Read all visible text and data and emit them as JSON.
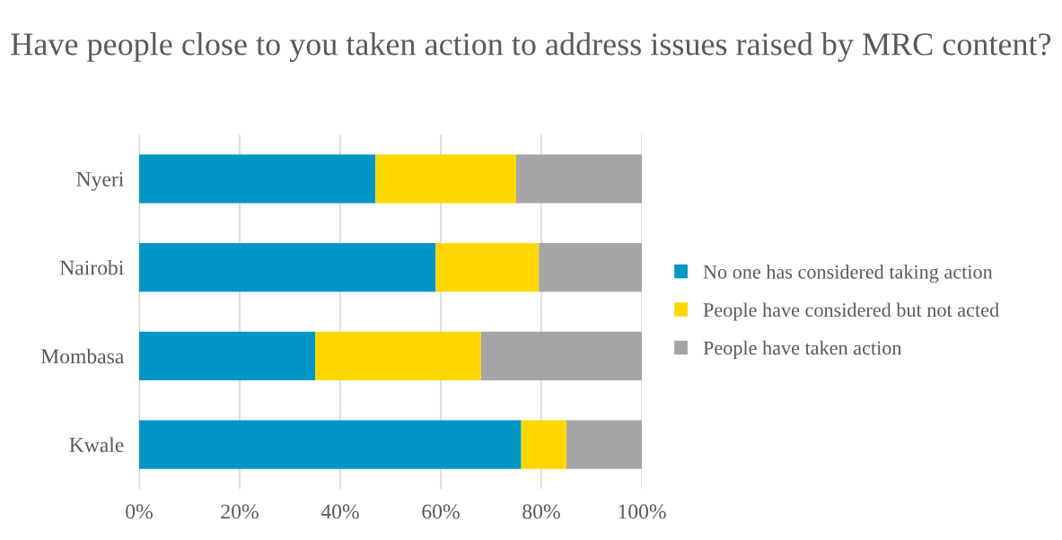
{
  "chart_data": {
    "type": "bar",
    "orientation": "horizontal",
    "stacked": true,
    "title": "Have people close to you taken action to address issues raised by MRC content?",
    "categories": [
      "Nyeri",
      "Nairobi",
      "Mombasa",
      "Kwale"
    ],
    "series": [
      {
        "name": "No one has considered taking action",
        "color": "#0096c6",
        "values": [
          47,
          59,
          35,
          76
        ]
      },
      {
        "name": "People have considered but not acted",
        "color": "#ffd700",
        "values": [
          28,
          20.5,
          33,
          9
        ]
      },
      {
        "name": "People have taken action",
        "color": "#a5a5a5",
        "values": [
          25,
          20.5,
          32,
          15
        ]
      }
    ],
    "xlim": [
      0,
      100
    ],
    "xticks": [
      {
        "value": 0,
        "label": "0%"
      },
      {
        "value": 20,
        "label": "20%"
      },
      {
        "value": 40,
        "label": "40%"
      },
      {
        "value": 60,
        "label": "60%"
      },
      {
        "value": 80,
        "label": "80%"
      },
      {
        "value": 100,
        "label": "100%"
      }
    ],
    "grid": "x",
    "legend": "right"
  }
}
